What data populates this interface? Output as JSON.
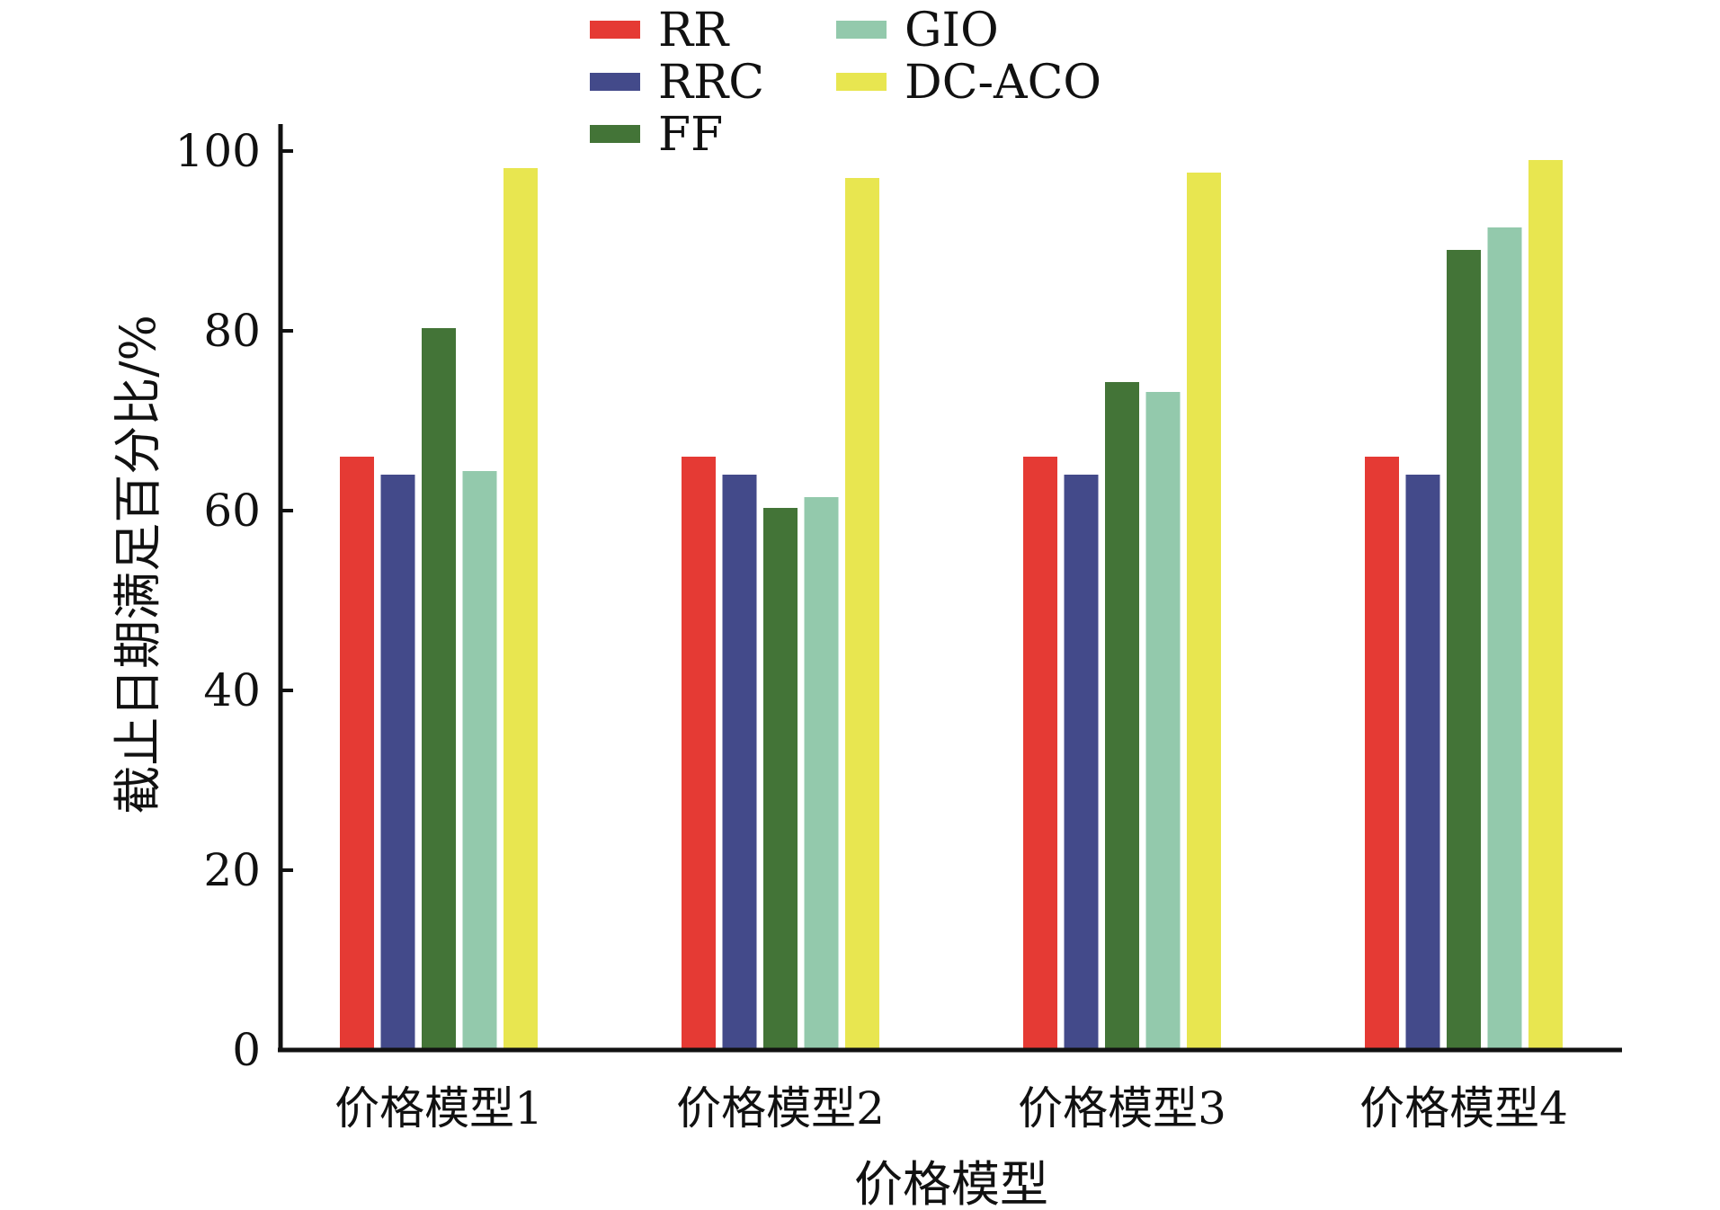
{
  "chart_data": {
    "type": "bar",
    "title": "",
    "xlabel": "价格模型",
    "ylabel": "截止日期满足百分比/%",
    "ylim": [
      0,
      100
    ],
    "yticks": [
      0,
      20,
      40,
      60,
      80,
      100
    ],
    "categories": [
      "价格模型1",
      "价格模型2",
      "价格模型3",
      "价格模型4"
    ],
    "legend_position": "top-center",
    "grid": false,
    "series": [
      {
        "name": "RR",
        "color": "#e53a34",
        "values": [
          66,
          66,
          66,
          66
        ]
      },
      {
        "name": "RRC",
        "color": "#434a8a",
        "values": [
          64,
          64,
          64,
          64
        ]
      },
      {
        "name": "FF",
        "color": "#437437",
        "values": [
          80.3,
          60.3,
          74.3,
          89
        ]
      },
      {
        "name": "GIO",
        "color": "#93c9ac",
        "values": [
          64.4,
          61.5,
          73.2,
          91.5
        ]
      },
      {
        "name": "DC-ACO",
        "color": "#e8e650",
        "values": [
          98.1,
          97,
          97.6,
          99
        ]
      }
    ]
  }
}
